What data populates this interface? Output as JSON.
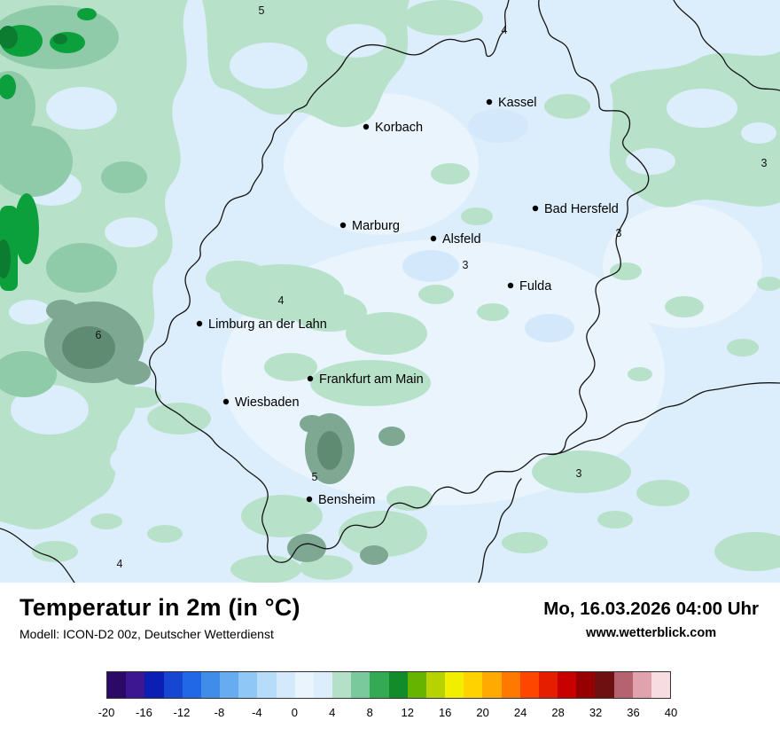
{
  "header": {
    "title": "Temperatur in 2m (in °C)",
    "model_line": "Modell: ICON-D2 00z, Deutscher Wetterdienst",
    "datetime": "Mo, 16.03.2026 04:00 Uhr",
    "website": "www.wetterblick.com"
  },
  "map": {
    "cities": [
      {
        "name": "Kassel"
      },
      {
        "name": "Korbach"
      },
      {
        "name": "Bad Hersfeld"
      },
      {
        "name": "Marburg"
      },
      {
        "name": "Alsfeld"
      },
      {
        "name": "Fulda"
      },
      {
        "name": "Limburg an der Lahn"
      },
      {
        "name": "Frankfurt am Main"
      },
      {
        "name": "Wiesbaden"
      },
      {
        "name": "Bensheim"
      }
    ],
    "temperature_labels": [
      {
        "value": "5"
      },
      {
        "value": "4"
      },
      {
        "value": "3"
      },
      {
        "value": "3"
      },
      {
        "value": "3"
      },
      {
        "value": "4"
      },
      {
        "value": "6"
      },
      {
        "value": "5"
      },
      {
        "value": "3"
      },
      {
        "value": "4"
      }
    ],
    "palette": {
      "pale_blue": "#dcedfb",
      "pale_green": "#b7e2c9",
      "medium_green": "#8fcba8",
      "gray_green": "#7ea892",
      "dark_gray_green": "#5f8b72",
      "bright_green": "#0ca03c",
      "dark_green": "#0b7c30",
      "border": "#141414"
    }
  },
  "legend": {
    "ticks": [
      "-20",
      "-16",
      "-12",
      "-8",
      "-4",
      "0",
      "4",
      "8",
      "12",
      "16",
      "20",
      "24",
      "28",
      "32",
      "36",
      "40"
    ],
    "colors": [
      "#2a0a66",
      "#3d1691",
      "#0b1fb5",
      "#1646d2",
      "#2168e6",
      "#3f8ce9",
      "#67abf1",
      "#8fc8f6",
      "#b6dcfa",
      "#d4eafc",
      "#e9f4fd",
      "#dcedfb",
      "#b4e0c8",
      "#79c99c",
      "#34aa54",
      "#128c2a",
      "#67b400",
      "#b6d200",
      "#f1ee00",
      "#ffd200",
      "#ffaa00",
      "#ff7800",
      "#ff4600",
      "#e61e00",
      "#c80000",
      "#960000",
      "#6e0f12",
      "#b5636f",
      "#e0a2ac",
      "#f7dde2"
    ]
  }
}
